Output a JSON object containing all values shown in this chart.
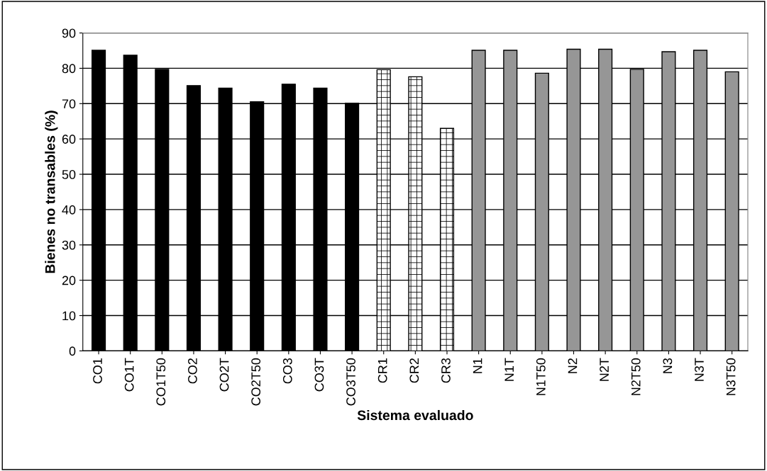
{
  "chart_data": {
    "type": "bar",
    "xlabel": "Sistema evaluado",
    "ylabel": "Bienes no transables (%)",
    "categories": [
      "CO1",
      "CO1T",
      "CO1T50",
      "CO2",
      "CO2T",
      "CO2T50",
      "CO3",
      "CO3T",
      "CO3T50",
      "CR1",
      "CR2",
      "CR3",
      "N1",
      "N1T",
      "N1T50",
      "N2",
      "N2T",
      "N2T50",
      "N3",
      "N3T",
      "N3T50"
    ],
    "values": [
      85.1,
      83.7,
      79.7,
      75.1,
      74.4,
      70.5,
      75.5,
      74.4,
      70.1,
      79.6,
      77.6,
      63.0,
      85.1,
      85.1,
      78.6,
      85.4,
      85.4,
      79.7,
      84.7,
      85.1,
      79.0
    ],
    "colors": [
      "#000000",
      "#000000",
      "#000000",
      "#000000",
      "#000000",
      "#000000",
      "#000000",
      "#000000",
      "#000000",
      "#ffffff",
      "#ffffff",
      "#ffffff",
      "#969696",
      "#969696",
      "#969696",
      "#969696",
      "#969696",
      "#969696",
      "#969696",
      "#969696",
      "#969696"
    ],
    "ylim": [
      0,
      90
    ],
    "yticks": [
      0,
      10,
      20,
      30,
      40,
      50,
      60,
      70,
      80,
      90
    ],
    "grid": "y"
  }
}
